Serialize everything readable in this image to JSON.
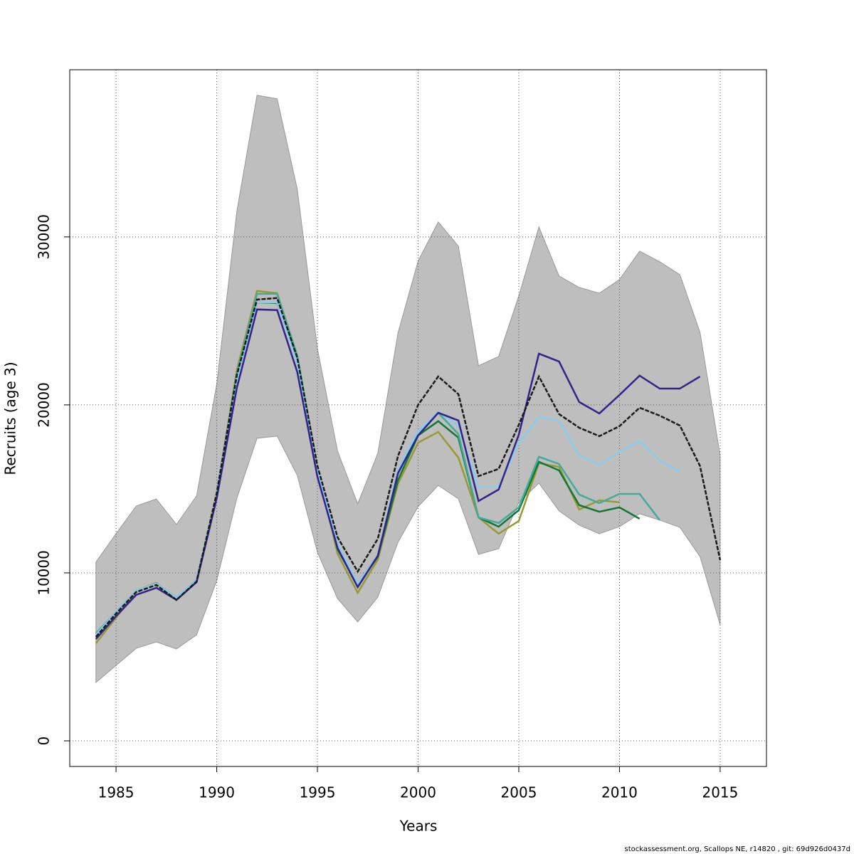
{
  "chart_data": {
    "type": "line",
    "xlabel": "Years",
    "ylabel": "Recruits (age 3)",
    "footer": "stockassessment.org, Scallops NE, r14820 , git: 69d926d0437d",
    "x": [
      1984,
      1985,
      1986,
      1987,
      1988,
      1989,
      1990,
      1991,
      1992,
      1993,
      1994,
      1995,
      1996,
      1997,
      1998,
      1999,
      2000,
      2001,
      2002,
      2003,
      2004,
      2005,
      2006,
      2007,
      2008,
      2009,
      2010,
      2011,
      2012,
      2013,
      2014,
      2015
    ],
    "xlim": [
      1982.7,
      2017.3
    ],
    "xticks": [
      1985,
      1990,
      1995,
      2000,
      2005,
      2010,
      2015
    ],
    "ylim": [
      -1525,
      39950
    ],
    "yticks": [
      0,
      10000,
      20000,
      30000
    ],
    "grid": true,
    "band": {
      "color": "#bebebe",
      "upper": [
        10640,
        12330,
        13980,
        14400,
        12880,
        14580,
        21230,
        31530,
        38430,
        38220,
        32840,
        23350,
        17250,
        14110,
        17120,
        24280,
        28560,
        30890,
        29450,
        22330,
        22880,
        26480,
        30590,
        27670,
        26990,
        26650,
        27460,
        29150,
        28520,
        27750,
        24320,
        16990
      ],
      "lower": [
        3470,
        4490,
        5510,
        5890,
        5470,
        6310,
        9530,
        14450,
        18010,
        18140,
        15800,
        11230,
        8470,
        7080,
        8560,
        11820,
        13940,
        15210,
        14410,
        11100,
        11440,
        14200,
        15340,
        13690,
        12840,
        12330,
        12750,
        13520,
        13140,
        12710,
        10970,
        6910
      ]
    },
    "series": [
      {
        "color": "#999933",
        "values": [
          5810,
          7330,
          8940,
          9410,
          8390,
          9450,
          14660,
          22080,
          26780,
          26650,
          22920,
          16230,
          11140,
          8810,
          10800,
          15300,
          17750,
          18390,
          16860,
          13300,
          12330,
          13090,
          16530,
          16310,
          13770,
          14320,
          14200,
          null,
          null,
          null,
          null,
          null
        ]
      },
      {
        "color": "#117733",
        "values": [
          6310,
          7670,
          8940,
          9360,
          8520,
          9580,
          14660,
          21860,
          26100,
          26060,
          22710,
          16140,
          11400,
          9240,
          10970,
          15510,
          18180,
          19030,
          18050,
          13300,
          12750,
          13730,
          16610,
          16100,
          14030,
          13640,
          13900,
          13220,
          null,
          null,
          null,
          null
        ]
      },
      {
        "color": "#44aa99",
        "values": [
          6400,
          7670,
          8940,
          9360,
          8520,
          9580,
          14660,
          21860,
          26610,
          26610,
          22920,
          16140,
          11480,
          9360,
          11060,
          15930,
          18430,
          19530,
          18260,
          13300,
          12970,
          13900,
          16910,
          16480,
          14660,
          14150,
          14700,
          14700,
          13140,
          null,
          null,
          null
        ]
      },
      {
        "color": "#88ccee",
        "values": [
          6310,
          7670,
          8940,
          9360,
          8520,
          9580,
          14660,
          21500,
          26100,
          26100,
          22500,
          16140,
          11690,
          9360,
          11060,
          16140,
          18430,
          19580,
          18770,
          15080,
          15130,
          17710,
          19280,
          19030,
          16990,
          16440,
          17200,
          17840,
          16690,
          16020,
          null,
          null
        ]
      },
      {
        "color": "#332288",
        "values": [
          6060,
          7420,
          8690,
          9110,
          8390,
          9450,
          14450,
          21020,
          25680,
          25640,
          21950,
          15720,
          11480,
          9150,
          11020,
          15930,
          18180,
          19530,
          19070,
          14280,
          14960,
          18220,
          23050,
          22580,
          20170,
          19490,
          20590,
          21740,
          20970,
          20970,
          21690,
          null
        ]
      },
      {
        "color": "#1a1a1a",
        "dashed": true,
        "values": [
          6190,
          7580,
          8860,
          9280,
          8390,
          9490,
          14750,
          21780,
          26270,
          26360,
          22800,
          16360,
          12120,
          10080,
          12030,
          16950,
          20000,
          21690,
          20640,
          15760,
          16190,
          18810,
          21690,
          19450,
          18640,
          18140,
          18730,
          19830,
          19360,
          18770,
          16360,
          10760
        ]
      }
    ]
  }
}
